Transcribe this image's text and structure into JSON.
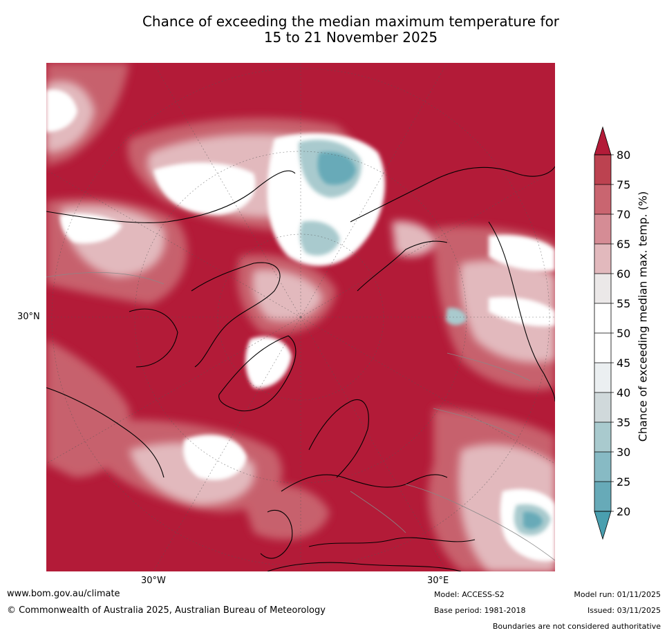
{
  "title_line1": "Chance of exceeding the median maximum temperature for",
  "title_line2": "15 to 21 November 2025",
  "axis_labels": {
    "lat": "30°N",
    "lon_west": "30°W",
    "lon_east": "30°E"
  },
  "colorbar": {
    "label": "Chance of exceeding median max. temp. (%)",
    "ticks": [
      "20",
      "25",
      "30",
      "35",
      "40",
      "45",
      "50",
      "55",
      "60",
      "65",
      "70",
      "75",
      "80"
    ],
    "bins": [
      {
        "range": "20-25",
        "color": "#67aab8"
      },
      {
        "range": "25-30",
        "color": "#87bac4"
      },
      {
        "range": "30-35",
        "color": "#a9cace"
      },
      {
        "range": "35-40",
        "color": "#d0d9db"
      },
      {
        "range": "40-45",
        "color": "#ebeff1"
      },
      {
        "range": "45-50",
        "color": "#ffffff"
      },
      {
        "range": "50-55",
        "color": "#ffffff"
      },
      {
        "range": "55-60",
        "color": "#ebe8e8"
      },
      {
        "range": "60-65",
        "color": "#e2b9bd"
      },
      {
        "range": "65-70",
        "color": "#d58c95"
      },
      {
        "range": "70-75",
        "color": "#c96570"
      },
      {
        "range": "75-80",
        "color": "#bc4250"
      }
    ],
    "under_color": "#4a9faf",
    "over_color": "#b31b38"
  },
  "map_colors": {
    "high": "#b31b38",
    "mid_high": "#c96570",
    "light_pink": "#e2b9bd",
    "white": "#ffffff",
    "pale_blue": "#a9cace",
    "teal": "#67aab8"
  },
  "footer": {
    "website": "www.bom.gov.au/climate",
    "copyright": "© Commonwealth of Australia 2025, Australian Bureau of Meteorology",
    "model": "Model: ACCESS-S2",
    "base_period": "Base period: 1981-2018",
    "model_run": "Model run: 01/11/2025",
    "issued": "Issued: 03/11/2025",
    "disclaimer": "Boundaries are not considered authoritative"
  }
}
